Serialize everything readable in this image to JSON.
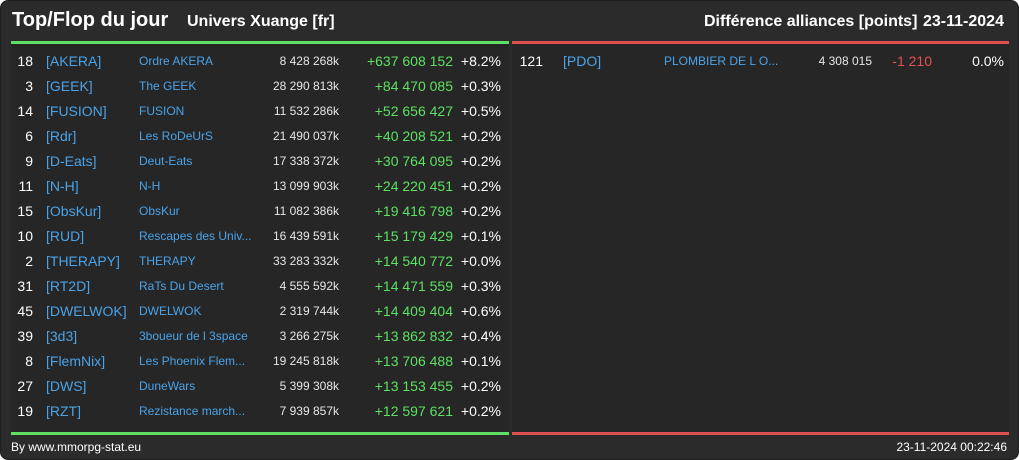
{
  "header": {
    "title": "Top/Flop du jour",
    "universe": "Univers Xuange [fr]",
    "diff_title": "Différence alliances [points]",
    "date": "23-11-2024"
  },
  "colors": {
    "background": "#2b2b2b",
    "top_accent": "#5ee062",
    "flop_accent": "#e0524f",
    "link_blue": "#4aa3e8"
  },
  "top": [
    {
      "rank": "18",
      "tag": "[AKERA]",
      "name": "Ordre AKERA",
      "points": "8 428 268k",
      "delta": "+637 608 152",
      "pct": "+8.2%"
    },
    {
      "rank": "3",
      "tag": "[GEEK]",
      "name": "The GEEK",
      "points": "28 290 813k",
      "delta": "+84 470 085",
      "pct": "+0.3%"
    },
    {
      "rank": "14",
      "tag": "[FUSION]",
      "name": "FUSION",
      "points": "11 532 286k",
      "delta": "+52 656 427",
      "pct": "+0.5%"
    },
    {
      "rank": "6",
      "tag": "[Rdr]",
      "name": "Les RoDeUrS",
      "points": "21 490 037k",
      "delta": "+40 208 521",
      "pct": "+0.2%"
    },
    {
      "rank": "9",
      "tag": "[D-Eats]",
      "name": "Deut-Eats",
      "points": "17 338 372k",
      "delta": "+30 764 095",
      "pct": "+0.2%"
    },
    {
      "rank": "11",
      "tag": "[N-H]",
      "name": "N-H",
      "points": "13 099 903k",
      "delta": "+24 220 451",
      "pct": "+0.2%"
    },
    {
      "rank": "15",
      "tag": "[ObsKur]",
      "name": "ObsKur",
      "points": "11 082 386k",
      "delta": "+19 416 798",
      "pct": "+0.2%"
    },
    {
      "rank": "10",
      "tag": "[RUD]",
      "name": "Rescapes des Univ...",
      "points": "16 439 591k",
      "delta": "+15 179 429",
      "pct": "+0.1%"
    },
    {
      "rank": "2",
      "tag": "[THERAPY]",
      "name": "THERAPY",
      "points": "33 283 332k",
      "delta": "+14 540 772",
      "pct": "+0.0%"
    },
    {
      "rank": "31",
      "tag": "[RT2D]",
      "name": "RaTs Du Desert",
      "points": "4 555 592k",
      "delta": "+14 471 559",
      "pct": "+0.3%"
    },
    {
      "rank": "45",
      "tag": "[DWELWOK]",
      "name": "DWELWOK",
      "points": "2 319 744k",
      "delta": "+14 409 404",
      "pct": "+0.6%"
    },
    {
      "rank": "39",
      "tag": "[3d3]",
      "name": "3boueur de l 3space",
      "points": "3 266 275k",
      "delta": "+13 862 832",
      "pct": "+0.4%"
    },
    {
      "rank": "8",
      "tag": "[FlemNix]",
      "name": "Les Phoenix Flem...",
      "points": "19 245 818k",
      "delta": "+13 706 488",
      "pct": "+0.1%"
    },
    {
      "rank": "27",
      "tag": "[DWS]",
      "name": "DuneWars",
      "points": "5 399 308k",
      "delta": "+13 153 455",
      "pct": "+0.2%"
    },
    {
      "rank": "19",
      "tag": "[RZT]",
      "name": "Rezistance march...",
      "points": "7 939 857k",
      "delta": "+12 597 621",
      "pct": "+0.2%"
    }
  ],
  "flop": [
    {
      "rank": "121",
      "tag": "[PDO]",
      "name": "PLOMBIER DE L O...",
      "points": "4 308 015",
      "delta": "-1 210",
      "pct": "0.0%"
    }
  ],
  "footer": {
    "source": "By www.mmorpg-stat.eu",
    "timestamp": "23-11-2024 00:22:46"
  }
}
